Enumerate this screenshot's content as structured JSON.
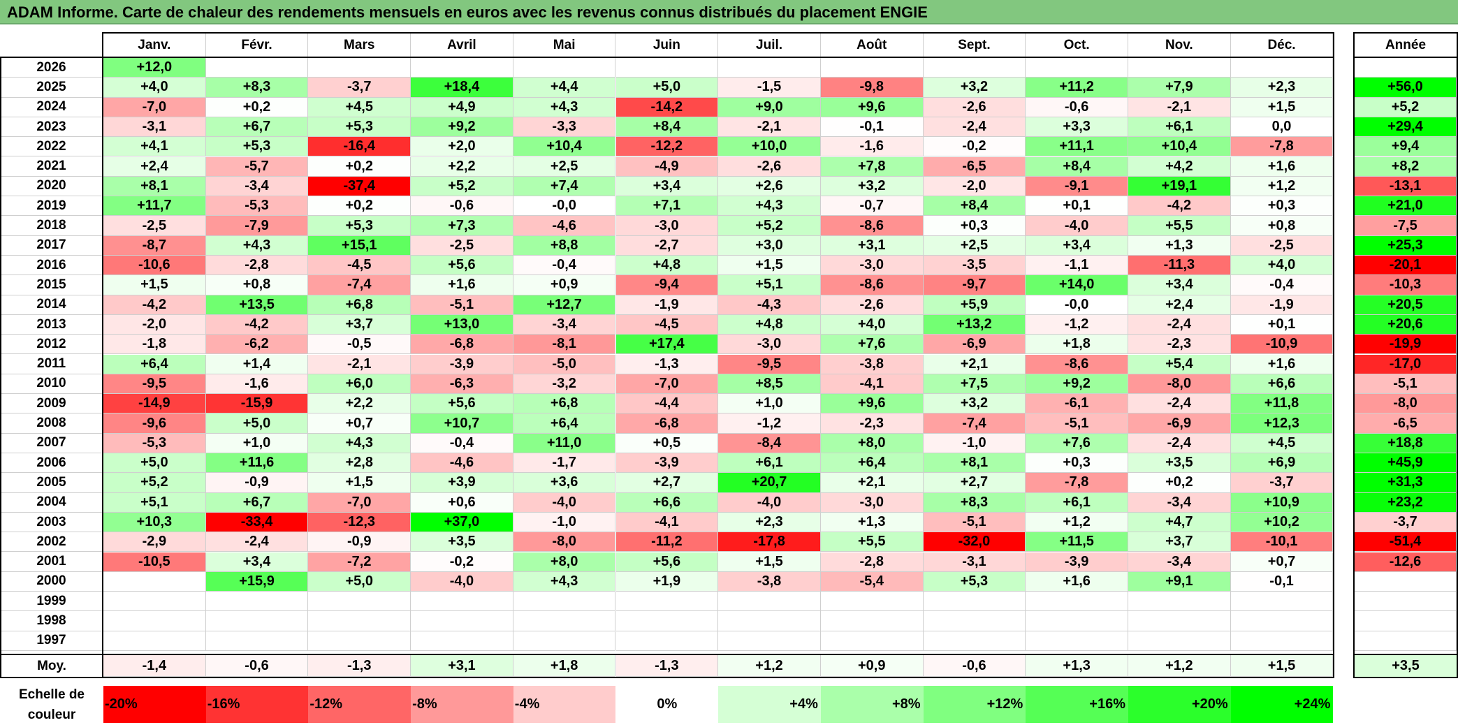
{
  "title": "ADAM Informe. Carte de chaleur des rendements mensuels en euros avec les revenus connus distribués du placement ENGIE",
  "chart_data": {
    "type": "heatmap",
    "title": "ADAM Informe. Carte de chaleur des rendements mensuels en euros avec les revenus connus distribués du placement ENGIE",
    "columns": [
      "Janv.",
      "Févr.",
      "Mars",
      "Avril",
      "Mai",
      "Juin",
      "Juil.",
      "Août",
      "Sept.",
      "Oct.",
      "Nov.",
      "Déc."
    ],
    "year_column": "Année",
    "rows": [
      {
        "year": "2026",
        "values": [
          "+12,0",
          "",
          "",
          "",
          "",
          "",
          "",
          "",
          "",
          "",
          "",
          ""
        ],
        "annual": ""
      },
      {
        "year": "2025",
        "values": [
          "+4,0",
          "+8,3",
          "-3,7",
          "+18,4",
          "+4,4",
          "+5,0",
          "-1,5",
          "-9,8",
          "+3,2",
          "+11,2",
          "+7,9",
          "+2,3"
        ],
        "annual": "+56,0"
      },
      {
        "year": "2024",
        "values": [
          "-7,0",
          "+0,2",
          "+4,5",
          "+4,9",
          "+4,3",
          "-14,2",
          "+9,0",
          "+9,6",
          "-2,6",
          "-0,6",
          "-2,1",
          "+1,5"
        ],
        "annual": "+5,2"
      },
      {
        "year": "2023",
        "values": [
          "-3,1",
          "+6,7",
          "+5,3",
          "+9,2",
          "-3,3",
          "+8,4",
          "-2,1",
          "-0,1",
          "-2,4",
          "+3,3",
          "+6,1",
          "0,0"
        ],
        "annual": "+29,4"
      },
      {
        "year": "2022",
        "values": [
          "+4,1",
          "+5,3",
          "-16,4",
          "+2,0",
          "+10,4",
          "-12,2",
          "+10,0",
          "-1,6",
          "-0,2",
          "+11,1",
          "+10,4",
          "-7,8"
        ],
        "annual": "+9,4"
      },
      {
        "year": "2021",
        "values": [
          "+2,4",
          "-5,7",
          "+0,2",
          "+2,2",
          "+2,5",
          "-4,9",
          "-2,6",
          "+7,8",
          "-6,5",
          "+8,4",
          "+4,2",
          "+1,6"
        ],
        "annual": "+8,2"
      },
      {
        "year": "2020",
        "values": [
          "+8,1",
          "-3,4",
          "-37,4",
          "+5,2",
          "+7,4",
          "+3,4",
          "+2,6",
          "+3,2",
          "-2,0",
          "-9,1",
          "+19,1",
          "+1,2"
        ],
        "annual": "-13,1"
      },
      {
        "year": "2019",
        "values": [
          "+11,7",
          "-5,3",
          "+0,2",
          "-0,6",
          "-0,0",
          "+7,1",
          "+4,3",
          "-0,7",
          "+8,4",
          "+0,1",
          "-4,2",
          "+0,3"
        ],
        "annual": "+21,0"
      },
      {
        "year": "2018",
        "values": [
          "-2,5",
          "-7,9",
          "+5,3",
          "+7,3",
          "-4,6",
          "-3,0",
          "+5,2",
          "-8,6",
          "+0,3",
          "-4,0",
          "+5,5",
          "+0,8"
        ],
        "annual": "-7,5"
      },
      {
        "year": "2017",
        "values": [
          "-8,7",
          "+4,3",
          "+15,1",
          "-2,5",
          "+8,8",
          "-2,7",
          "+3,0",
          "+3,1",
          "+2,5",
          "+3,4",
          "+1,3",
          "-2,5"
        ],
        "annual": "+25,3"
      },
      {
        "year": "2016",
        "values": [
          "-10,6",
          "-2,8",
          "-4,5",
          "+5,6",
          "-0,4",
          "+4,8",
          "+1,5",
          "-3,0",
          "-3,5",
          "-1,1",
          "-11,3",
          "+4,0"
        ],
        "annual": "-20,1"
      },
      {
        "year": "2015",
        "values": [
          "+1,5",
          "+0,8",
          "-7,4",
          "+1,6",
          "+0,9",
          "-9,4",
          "+5,1",
          "-8,6",
          "-9,7",
          "+14,0",
          "+3,4",
          "-0,4"
        ],
        "annual": "-10,3"
      },
      {
        "year": "2014",
        "values": [
          "-4,2",
          "+13,5",
          "+6,8",
          "-5,1",
          "+12,7",
          "-1,9",
          "-4,3",
          "-2,6",
          "+5,9",
          "-0,0",
          "+2,4",
          "-1,9"
        ],
        "annual": "+20,5"
      },
      {
        "year": "2013",
        "values": [
          "-2,0",
          "-4,2",
          "+3,7",
          "+13,0",
          "-3,4",
          "-4,5",
          "+4,8",
          "+4,0",
          "+13,2",
          "-1,2",
          "-2,4",
          "+0,1"
        ],
        "annual": "+20,6"
      },
      {
        "year": "2012",
        "values": [
          "-1,8",
          "-6,2",
          "-0,5",
          "-6,8",
          "-8,1",
          "+17,4",
          "-3,0",
          "+7,6",
          "-6,9",
          "+1,8",
          "-2,3",
          "-10,9"
        ],
        "annual": "-19,9"
      },
      {
        "year": "2011",
        "values": [
          "+6,4",
          "+1,4",
          "-2,1",
          "-3,9",
          "-5,0",
          "-1,3",
          "-9,5",
          "-3,8",
          "+2,1",
          "-8,6",
          "+5,4",
          "+1,6"
        ],
        "annual": "-17,0"
      },
      {
        "year": "2010",
        "values": [
          "-9,5",
          "-1,6",
          "+6,0",
          "-6,3",
          "-3,2",
          "-7,0",
          "+8,5",
          "-4,1",
          "+7,5",
          "+9,2",
          "-8,0",
          "+6,6"
        ],
        "annual": "-5,1"
      },
      {
        "year": "2009",
        "values": [
          "-14,9",
          "-15,9",
          "+2,2",
          "+5,6",
          "+6,8",
          "-4,4",
          "+1,0",
          "+9,6",
          "+3,2",
          "-6,1",
          "-2,4",
          "+11,8"
        ],
        "annual": "-8,0"
      },
      {
        "year": "2008",
        "values": [
          "-9,6",
          "+5,0",
          "+0,7",
          "+10,7",
          "+6,4",
          "-6,8",
          "-1,2",
          "-2,3",
          "-7,4",
          "-5,1",
          "-6,9",
          "+12,3"
        ],
        "annual": "-6,5"
      },
      {
        "year": "2007",
        "values": [
          "-5,3",
          "+1,0",
          "+4,3",
          "-0,4",
          "+11,0",
          "+0,5",
          "-8,4",
          "+8,0",
          "-1,0",
          "+7,6",
          "-2,4",
          "+4,5"
        ],
        "annual": "+18,8"
      },
      {
        "year": "2006",
        "values": [
          "+5,0",
          "+11,6",
          "+2,8",
          "-4,6",
          "-1,7",
          "-3,9",
          "+6,1",
          "+6,4",
          "+8,1",
          "+0,3",
          "+3,5",
          "+6,9"
        ],
        "annual": "+45,9"
      },
      {
        "year": "2005",
        "values": [
          "+5,2",
          "-0,9",
          "+1,5",
          "+3,9",
          "+3,6",
          "+2,7",
          "+20,7",
          "+2,1",
          "+2,7",
          "-7,8",
          "+0,2",
          "-3,7"
        ],
        "annual": "+31,3"
      },
      {
        "year": "2004",
        "values": [
          "+5,1",
          "+6,7",
          "-7,0",
          "+0,6",
          "-4,0",
          "+6,6",
          "-4,0",
          "-3,0",
          "+8,3",
          "+6,1",
          "-3,4",
          "+10,9"
        ],
        "annual": "+23,2"
      },
      {
        "year": "2003",
        "values": [
          "+10,3",
          "-33,4",
          "-12,3",
          "+37,0",
          "-1,0",
          "-4,1",
          "+2,3",
          "+1,3",
          "-5,1",
          "+1,2",
          "+4,7",
          "+10,2"
        ],
        "annual": "-3,7"
      },
      {
        "year": "2002",
        "values": [
          "-2,9",
          "-2,4",
          "-0,9",
          "+3,5",
          "-8,0",
          "-11,2",
          "-17,8",
          "+5,5",
          "-32,0",
          "+11,5",
          "+3,7",
          "-10,1"
        ],
        "annual": "-51,4"
      },
      {
        "year": "2001",
        "values": [
          "-10,5",
          "+3,4",
          "-7,2",
          "-0,2",
          "+8,0",
          "+5,6",
          "+1,5",
          "-2,8",
          "-3,1",
          "-3,9",
          "-3,4",
          "+0,7"
        ],
        "annual": "-12,6"
      },
      {
        "year": "2000",
        "values": [
          "",
          "+15,9",
          "+5,0",
          "-4,0",
          "+4,3",
          "+1,9",
          "-3,8",
          "-5,4",
          "+5,3",
          "+1,6",
          "+9,1",
          "-0,1"
        ],
        "annual": ""
      },
      {
        "year": "1999",
        "values": [
          "",
          "",
          "",
          "",
          "",
          "",
          "",
          "",
          "",
          "",
          "",
          ""
        ],
        "annual": ""
      },
      {
        "year": "1998",
        "values": [
          "",
          "",
          "",
          "",
          "",
          "",
          "",
          "",
          "",
          "",
          "",
          ""
        ],
        "annual": ""
      },
      {
        "year": "1997",
        "values": [
          "",
          "",
          "",
          "",
          "",
          "",
          "",
          "",
          "",
          "",
          "",
          ""
        ],
        "annual": ""
      }
    ],
    "average": {
      "label": "Moy.",
      "values": [
        "-1,4",
        "-0,6",
        "-1,3",
        "+3,1",
        "+1,8",
        "-1,3",
        "+1,2",
        "+0,9",
        "-0,6",
        "+1,3",
        "+1,2",
        "+1,5"
      ],
      "annual": "+3,5"
    },
    "color_scale": {
      "label_line1": "Echelle de",
      "label_line2": "couleur",
      "steps": [
        {
          "label": "-20%",
          "value": -20
        },
        {
          "label": "-16%",
          "value": -16
        },
        {
          "label": "-12%",
          "value": -12
        },
        {
          "label": "-8%",
          "value": -8
        },
        {
          "label": "-4%",
          "value": -4
        },
        {
          "label": "0%",
          "value": 0
        },
        {
          "label": "+4%",
          "value": 4
        },
        {
          "label": "+8%",
          "value": 8
        },
        {
          "label": "+12%",
          "value": 12
        },
        {
          "label": "+16%",
          "value": 16
        },
        {
          "label": "+20%",
          "value": 20
        },
        {
          "label": "+24%",
          "value": 24
        }
      ],
      "negative_color": "#ff0000",
      "zero_color": "#ffffff",
      "positive_color": "#00ff00",
      "negative_limit": -20,
      "positive_limit": 24
    }
  }
}
